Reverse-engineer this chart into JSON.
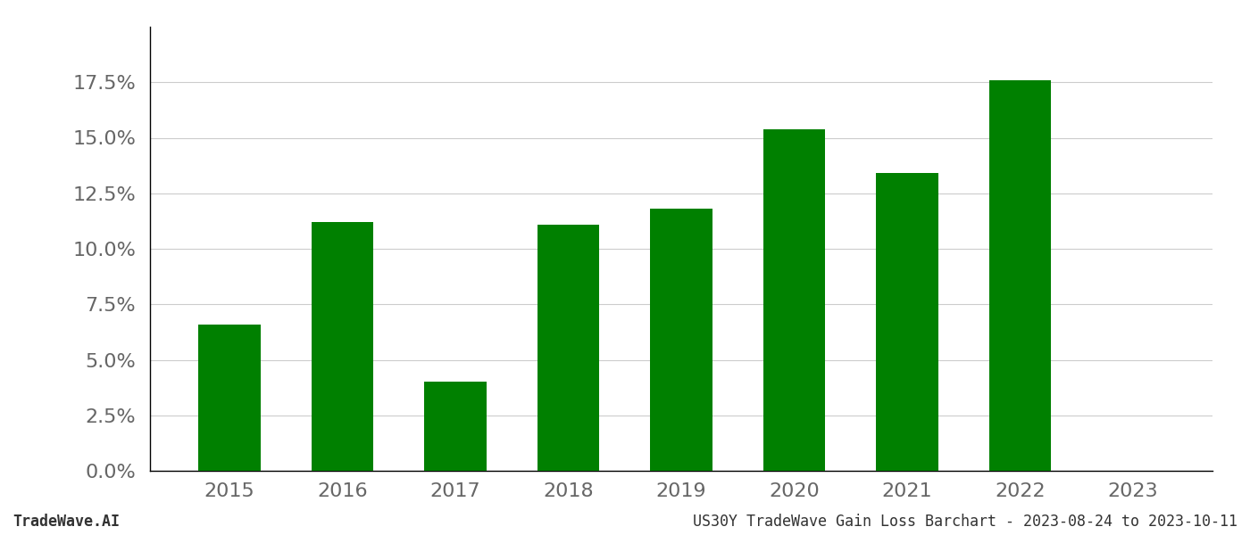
{
  "categories": [
    "2015",
    "2016",
    "2017",
    "2018",
    "2019",
    "2020",
    "2021",
    "2022",
    "2023"
  ],
  "values": [
    0.066,
    0.112,
    0.04,
    0.111,
    0.118,
    0.154,
    0.134,
    0.176,
    0.0
  ],
  "bar_color": "#008000",
  "background_color": "#ffffff",
  "grid_color": "#cccccc",
  "footer_left": "TradeWave.AI",
  "footer_right": "US30Y TradeWave Gain Loss Barchart - 2023-08-24 to 2023-10-11",
  "ylim": [
    0,
    0.2
  ],
  "yticks": [
    0.0,
    0.025,
    0.05,
    0.075,
    0.1,
    0.125,
    0.15,
    0.175
  ],
  "bar_width": 0.55,
  "tick_fontsize": 16,
  "footer_fontsize": 12
}
